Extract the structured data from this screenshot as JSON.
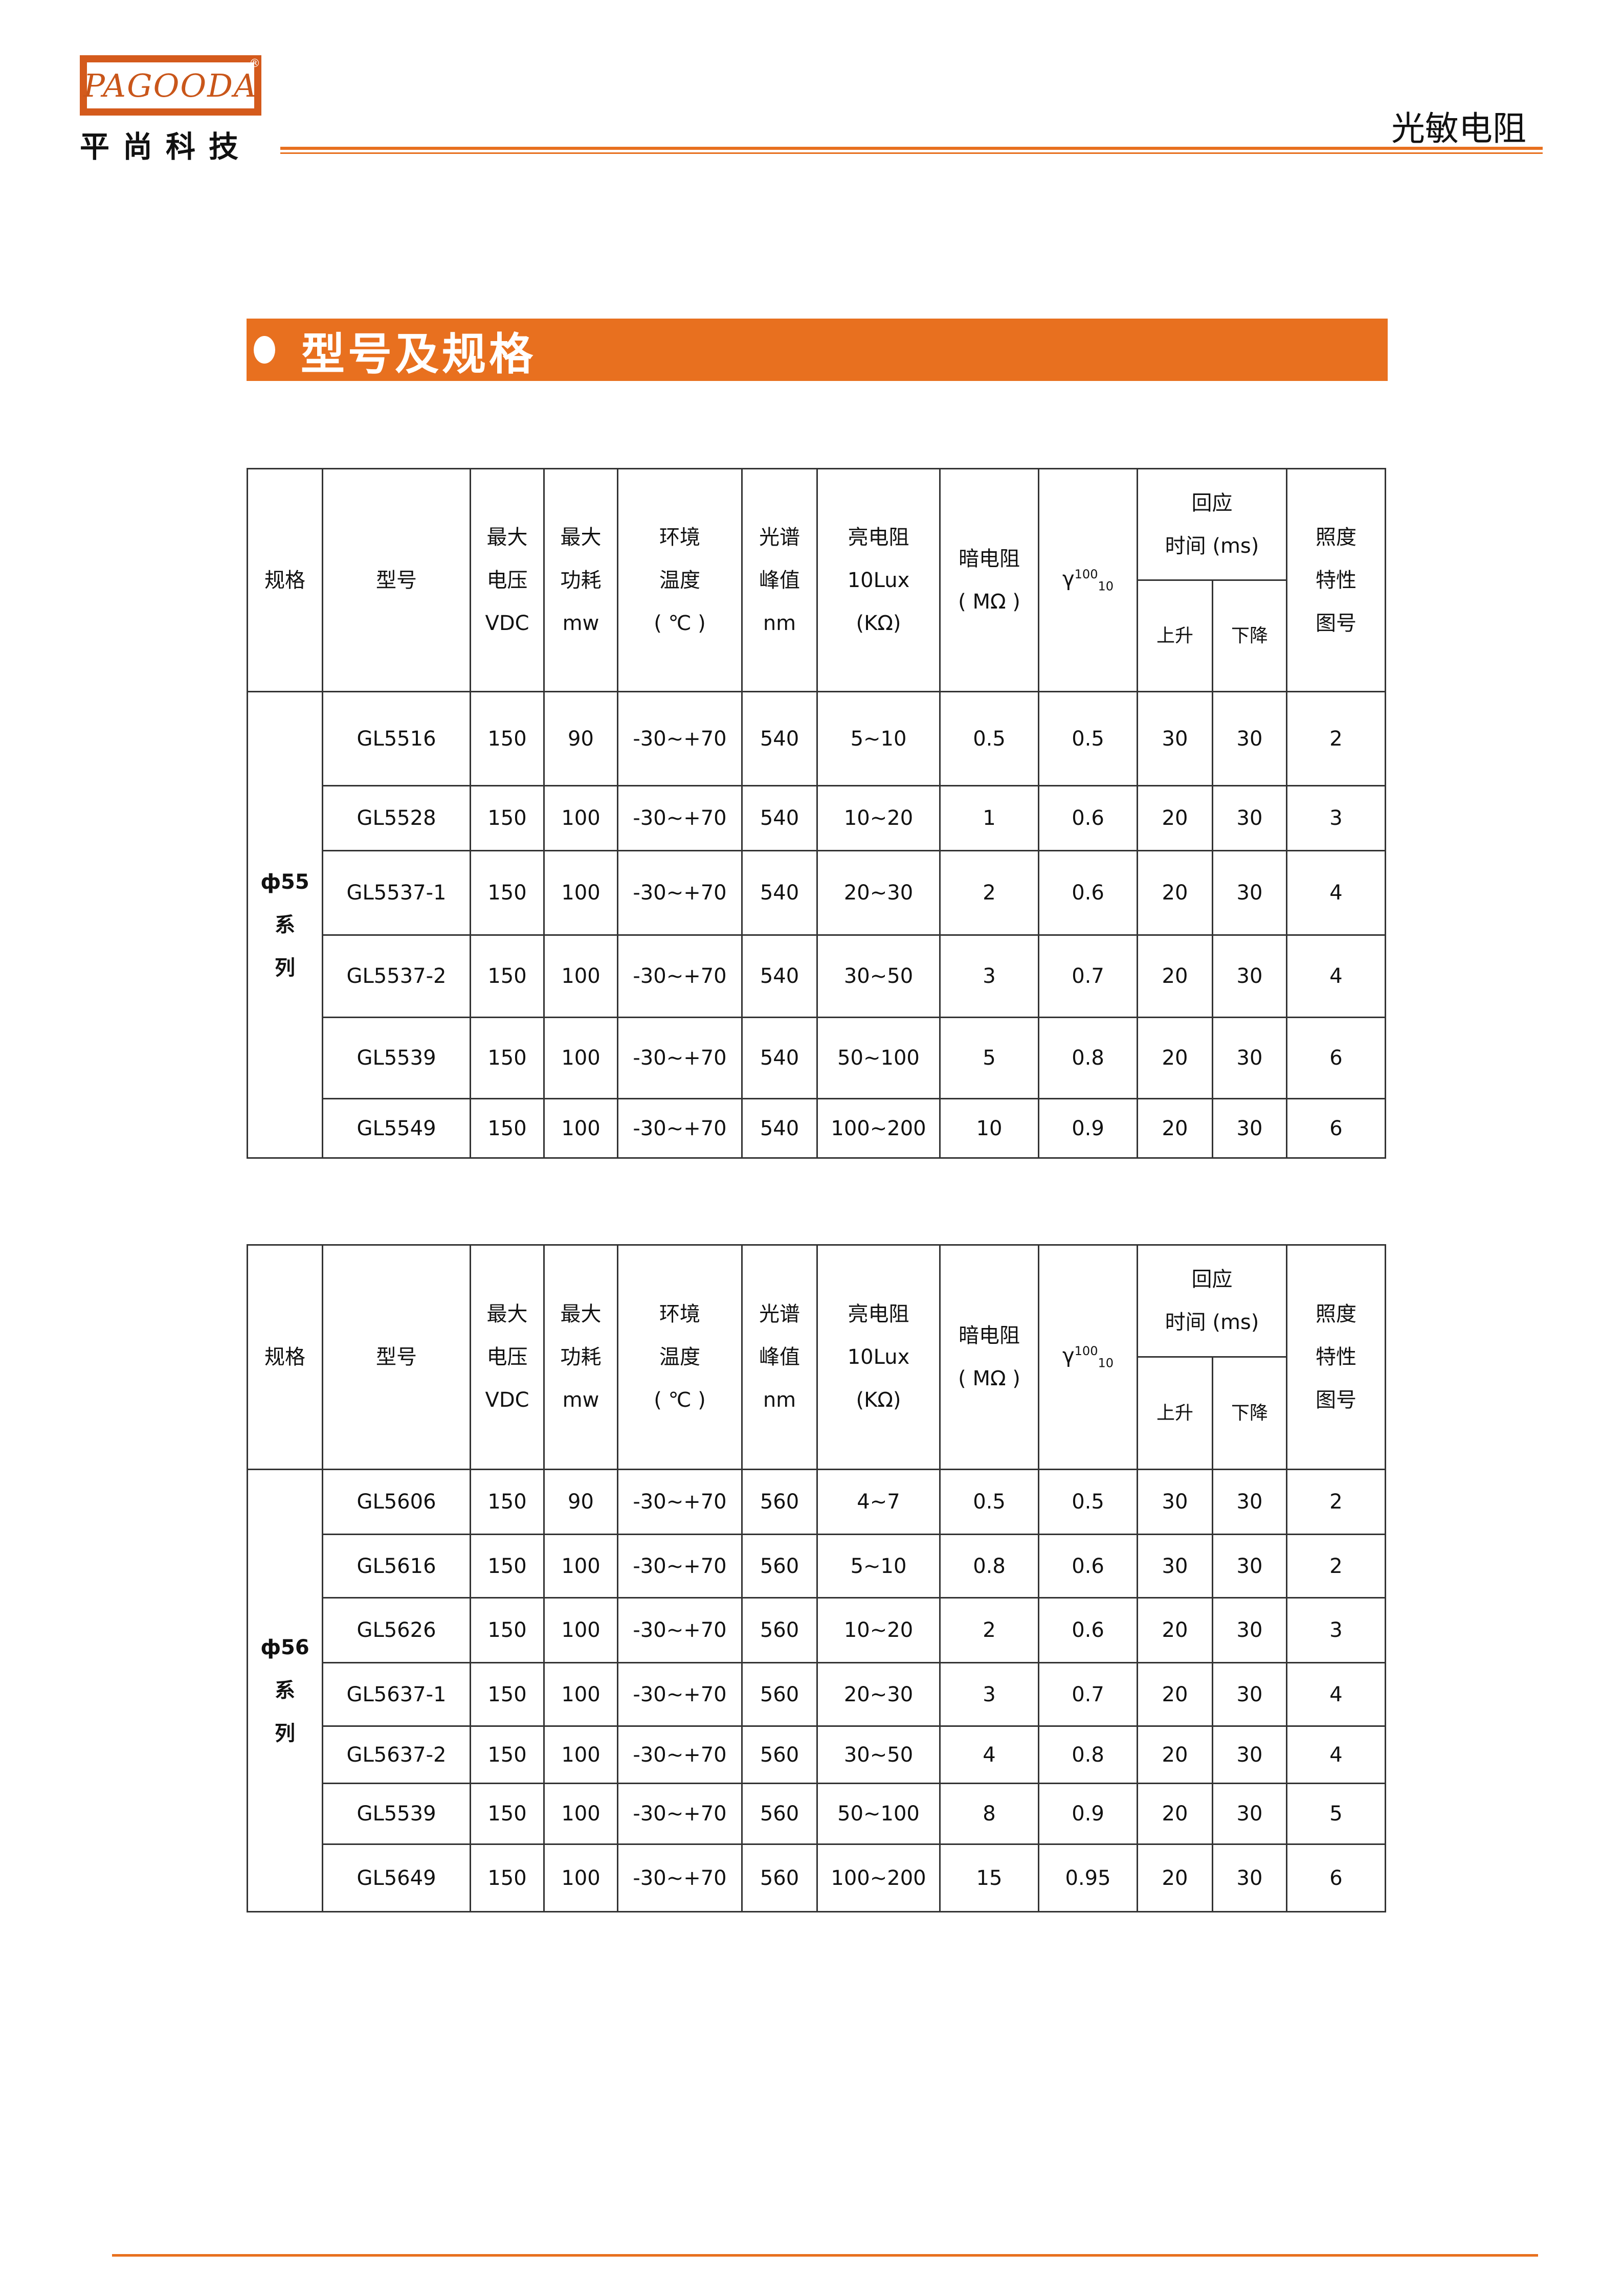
{
  "header": {
    "logo_text": "PAGOODA",
    "logo_reg": "®",
    "company_cn": "平尚科技",
    "page_title": "光敏电阻"
  },
  "section": {
    "title": "型号及规格"
  },
  "colors": {
    "accent": "#e8701f",
    "logo": "#d45a1c"
  },
  "table_headers": {
    "spec": "规格",
    "model": "型号",
    "voltage": [
      "最大",
      "电压",
      "VDC"
    ],
    "power": [
      "最大",
      "功耗",
      "mw"
    ],
    "temp": [
      "环境",
      "温度",
      "( ℃ )"
    ],
    "peak": [
      "光谱",
      "峰值",
      "nm"
    ],
    "light_res": [
      "亮电阻",
      "10Lux",
      "(KΩ)"
    ],
    "dark_res": [
      "暗电阻",
      "( MΩ )"
    ],
    "gamma": {
      "base": "γ",
      "sup": "100",
      "sub": "10"
    },
    "response": [
      "回应",
      "时间 (ms)"
    ],
    "rise": "上升",
    "fall": "下降",
    "chart": [
      "照度",
      "特性",
      "图号"
    ]
  },
  "tables": [
    {
      "series_label": [
        "ф55",
        "系",
        "列"
      ],
      "rows": [
        [
          "GL5516",
          "150",
          "90",
          "-30~+70",
          "540",
          "5~10",
          "0.5",
          "0.5",
          "30",
          "30",
          "2"
        ],
        [
          "GL5528",
          "150",
          "100",
          "-30~+70",
          "540",
          "10~20",
          "1",
          "0.6",
          "20",
          "30",
          "3"
        ],
        [
          "GL5537-1",
          "150",
          "100",
          "-30~+70",
          "540",
          "20~30",
          "2",
          "0.6",
          "20",
          "30",
          "4"
        ],
        [
          "GL5537-2",
          "150",
          "100",
          "-30~+70",
          "540",
          "30~50",
          "3",
          "0.7",
          "20",
          "30",
          "4"
        ],
        [
          "GL5539",
          "150",
          "100",
          "-30~+70",
          "540",
          "50~100",
          "5",
          "0.8",
          "20",
          "30",
          "6"
        ],
        [
          "GL5549",
          "150",
          "100",
          "-30~+70",
          "540",
          "100~200",
          "10",
          "0.9",
          "20",
          "30",
          "6"
        ]
      ]
    },
    {
      "series_label": [
        "ф56",
        "系",
        "列"
      ],
      "rows": [
        [
          "GL5606",
          "150",
          "90",
          "-30~+70",
          "560",
          "4~7",
          "0.5",
          "0.5",
          "30",
          "30",
          "2"
        ],
        [
          "GL5616",
          "150",
          "100",
          "-30~+70",
          "560",
          "5~10",
          "0.8",
          "0.6",
          "30",
          "30",
          "2"
        ],
        [
          "GL5626",
          "150",
          "100",
          "-30~+70",
          "560",
          "10~20",
          "2",
          "0.6",
          "20",
          "30",
          "3"
        ],
        [
          "GL5637-1",
          "150",
          "100",
          "-30~+70",
          "560",
          "20~30",
          "3",
          "0.7",
          "20",
          "30",
          "4"
        ],
        [
          "GL5637-2",
          "150",
          "100",
          "-30~+70",
          "560",
          "30~50",
          "4",
          "0.8",
          "20",
          "30",
          "4"
        ],
        [
          "GL5539",
          "150",
          "100",
          "-30~+70",
          "560",
          "50~100",
          "8",
          "0.9",
          "20",
          "30",
          "5"
        ],
        [
          "GL5649",
          "150",
          "100",
          "-30~+70",
          "560",
          "100~200",
          "15",
          "0.95",
          "20",
          "30",
          "6"
        ]
      ]
    }
  ]
}
